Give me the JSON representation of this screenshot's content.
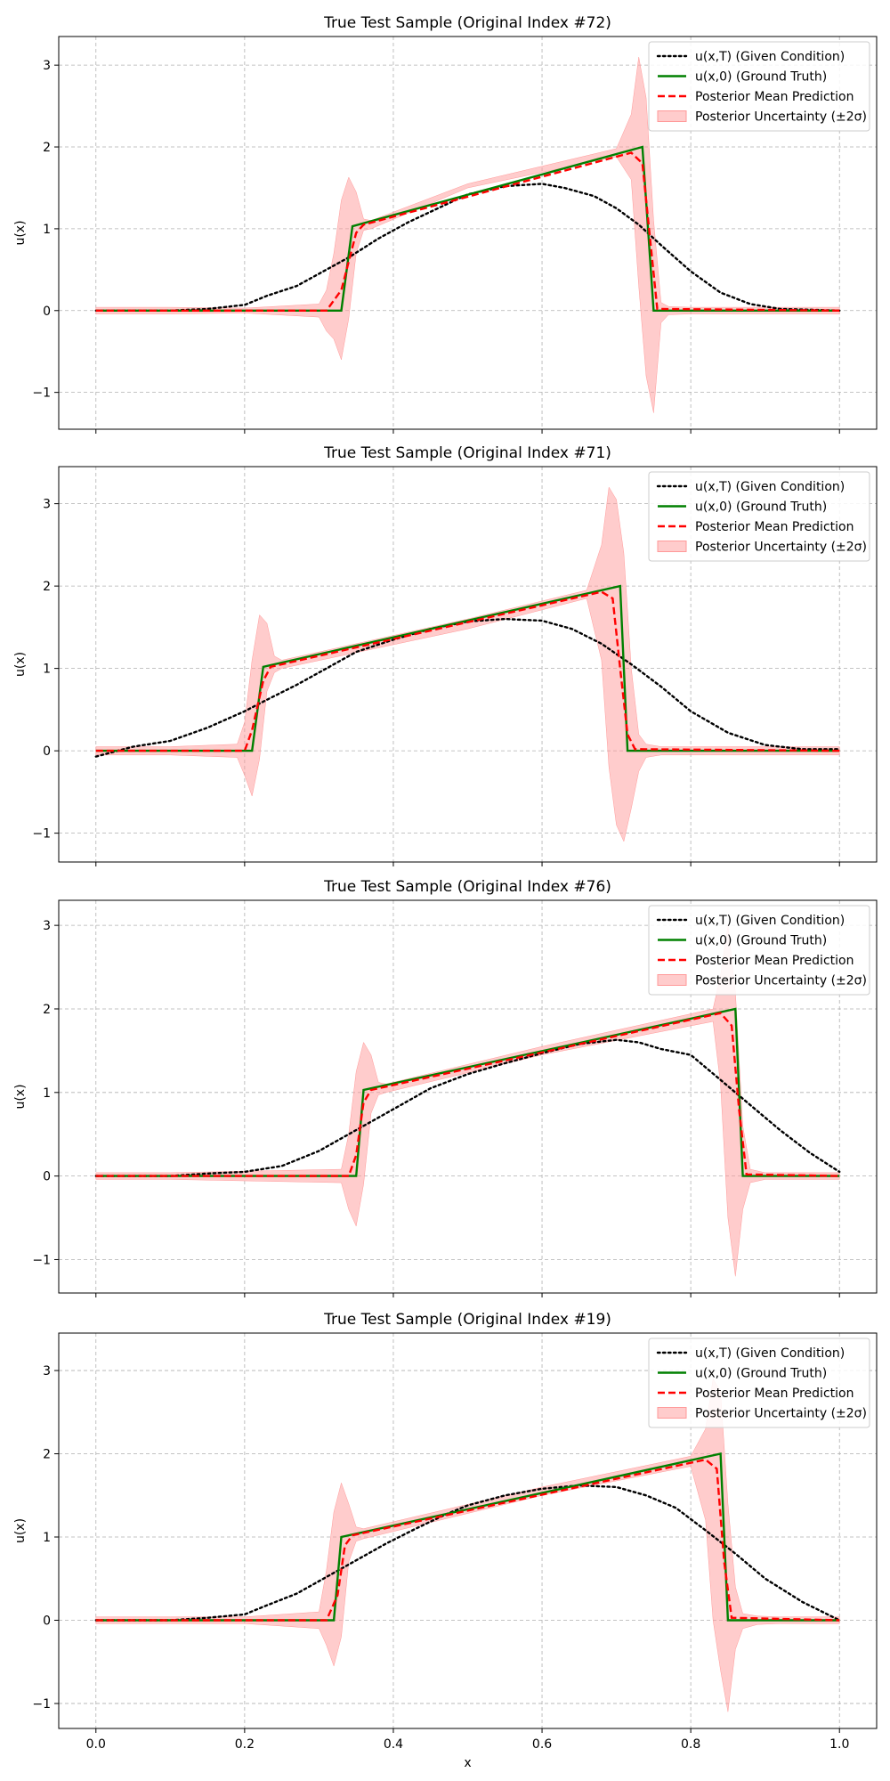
{
  "figure": {
    "xlabel": "x"
  },
  "colors": {
    "condition": "#000000",
    "ground_truth": "#008000",
    "mean": "#ff0000",
    "band": "#ff9999",
    "grid": "#b0b0b0"
  },
  "chart_data": [
    {
      "type": "line",
      "title": "True Test Sample (Original Index #72)",
      "xlabel": "",
      "ylabel": "u(x)",
      "xlim": [
        -0.05,
        1.05
      ],
      "ylim": [
        -1.45,
        3.35
      ],
      "xticks": [
        "0.0",
        "0.2",
        "0.4",
        "0.6",
        "0.8",
        "1.0"
      ],
      "yticks": [
        "−1",
        "0",
        "1",
        "2",
        "3"
      ],
      "grid": true,
      "legend": {
        "placement": "top-right",
        "entries": [
          "u(x,T) (Given Condition)",
          "u(x,0) (Ground Truth)",
          "Posterior Mean Prediction",
          "Posterior Uncertainty (±2σ)"
        ]
      },
      "series": [
        {
          "name": "u(x,T) (Given Condition)",
          "style": "dotted",
          "x": [
            0,
            0.1,
            0.15,
            0.2,
            0.23,
            0.27,
            0.3,
            0.34,
            0.38,
            0.42,
            0.46,
            0.5,
            0.55,
            0.6,
            0.63,
            0.67,
            0.7,
            0.73,
            0.76,
            0.8,
            0.84,
            0.88,
            0.92,
            1.0
          ],
          "y": [
            0,
            0,
            0.02,
            0.07,
            0.18,
            0.3,
            0.45,
            0.65,
            0.88,
            1.08,
            1.25,
            1.42,
            1.52,
            1.55,
            1.5,
            1.4,
            1.25,
            1.05,
            0.8,
            0.48,
            0.22,
            0.08,
            0.02,
            0
          ]
        },
        {
          "name": "u(x,0) (Ground Truth)",
          "style": "solid",
          "x": [
            0,
            0.33,
            0.345,
            0.735,
            0.75,
            1.0
          ],
          "y": [
            0,
            0,
            1.03,
            2.0,
            0,
            0
          ]
        },
        {
          "name": "Posterior Mean Prediction",
          "style": "dashed",
          "x": [
            0,
            0.31,
            0.33,
            0.35,
            0.36,
            0.72,
            0.735,
            0.745,
            0.755,
            1.0
          ],
          "y": [
            0,
            0,
            0.25,
            0.95,
            1.05,
            1.93,
            1.8,
            0.9,
            0.02,
            0
          ]
        },
        {
          "name": "Posterior Uncertainty (±2σ)",
          "style": "band",
          "x": [
            0,
            0.05,
            0.1,
            0.2,
            0.3,
            0.31,
            0.32,
            0.33,
            0.34,
            0.35,
            0.36,
            0.37,
            0.5,
            0.7,
            0.72,
            0.73,
            0.74,
            0.75,
            0.76,
            0.77,
            0.8,
            1.0
          ],
          "upper": [
            0.04,
            0.04,
            0.04,
            0.03,
            0.08,
            0.25,
            0.7,
            1.35,
            1.63,
            1.45,
            1.12,
            1.1,
            1.55,
            1.98,
            2.4,
            3.1,
            2.6,
            1.1,
            0.1,
            0.05,
            0.04,
            0.04
          ],
          "lower": [
            -0.04,
            -0.04,
            -0.04,
            -0.03,
            -0.08,
            -0.25,
            -0.35,
            -0.6,
            -0.1,
            0.7,
            0.98,
            1.0,
            1.5,
            1.88,
            1.6,
            0.3,
            -0.8,
            -1.25,
            -0.15,
            -0.05,
            -0.04,
            -0.04
          ]
        }
      ]
    },
    {
      "type": "line",
      "title": "True Test Sample (Original Index #71)",
      "xlabel": "",
      "ylabel": "u(x)",
      "xlim": [
        -0.05,
        1.05
      ],
      "ylim": [
        -1.35,
        3.45
      ],
      "xticks": [
        "0.0",
        "0.2",
        "0.4",
        "0.6",
        "0.8",
        "1.0"
      ],
      "yticks": [
        "−1",
        "0",
        "1",
        "2",
        "3"
      ],
      "grid": true,
      "legend": {
        "placement": "top-right",
        "entries": [
          "u(x,T) (Given Condition)",
          "u(x,0) (Ground Truth)",
          "Posterior Mean Prediction",
          "Posterior Uncertainty (±2σ)"
        ]
      },
      "series": [
        {
          "name": "u(x,T) (Given Condition)",
          "style": "dotted",
          "x": [
            0,
            0.05,
            0.1,
            0.15,
            0.2,
            0.23,
            0.27,
            0.31,
            0.35,
            0.4,
            0.45,
            0.5,
            0.55,
            0.6,
            0.64,
            0.68,
            0.72,
            0.76,
            0.8,
            0.85,
            0.9,
            0.95,
            1.0
          ],
          "y": [
            -0.07,
            0.05,
            0.12,
            0.28,
            0.48,
            0.62,
            0.8,
            1.0,
            1.2,
            1.35,
            1.48,
            1.57,
            1.6,
            1.58,
            1.48,
            1.3,
            1.05,
            0.78,
            0.48,
            0.22,
            0.07,
            0.02,
            0.02
          ]
        },
        {
          "name": "u(x,0) (Ground Truth)",
          "style": "solid",
          "x": [
            0,
            0.21,
            0.225,
            0.705,
            0.715,
            1.0
          ],
          "y": [
            0,
            0,
            1.02,
            2.0,
            0,
            0
          ]
        },
        {
          "name": "Posterior Mean Prediction",
          "style": "dashed",
          "x": [
            0,
            0.2,
            0.21,
            0.225,
            0.235,
            0.68,
            0.695,
            0.705,
            0.715,
            0.725,
            1.0
          ],
          "y": [
            0,
            0,
            0.25,
            0.85,
            1.02,
            1.93,
            1.85,
            1.0,
            0.2,
            0.02,
            0
          ]
        },
        {
          "name": "Posterior Uncertainty (±2σ)",
          "style": "band",
          "x": [
            0,
            0.05,
            0.1,
            0.19,
            0.2,
            0.21,
            0.22,
            0.23,
            0.24,
            0.25,
            0.5,
            0.66,
            0.68,
            0.69,
            0.7,
            0.71,
            0.72,
            0.73,
            0.74,
            0.76,
            1.0
          ],
          "upper": [
            0.05,
            0.05,
            0.05,
            0.08,
            0.35,
            1.1,
            1.65,
            1.55,
            1.15,
            1.1,
            1.6,
            1.95,
            2.5,
            3.2,
            3.05,
            2.4,
            1.0,
            0.2,
            0.08,
            0.05,
            0.05
          ],
          "lower": [
            -0.05,
            -0.05,
            -0.05,
            -0.08,
            -0.3,
            -0.55,
            -0.1,
            0.72,
            0.95,
            1.0,
            1.48,
            1.85,
            1.1,
            -0.2,
            -0.9,
            -1.1,
            -0.7,
            -0.25,
            -0.08,
            -0.05,
            -0.05
          ]
        }
      ]
    },
    {
      "type": "line",
      "title": "True Test Sample (Original Index #76)",
      "xlabel": "",
      "ylabel": "u(x)",
      "xlim": [
        -0.05,
        1.05
      ],
      "ylim": [
        -1.4,
        3.3
      ],
      "xticks": [
        "0.0",
        "0.2",
        "0.4",
        "0.6",
        "0.8",
        "1.0"
      ],
      "yticks": [
        "−1",
        "0",
        "1",
        "2",
        "3"
      ],
      "grid": true,
      "legend": {
        "placement": "top-right",
        "entries": [
          "u(x,T) (Given Condition)",
          "u(x,0) (Ground Truth)",
          "Posterior Mean Prediction",
          "Posterior Uncertainty (±2σ)"
        ]
      },
      "series": [
        {
          "name": "u(x,T) (Given Condition)",
          "style": "dotted",
          "x": [
            0,
            0.1,
            0.15,
            0.2,
            0.25,
            0.3,
            0.35,
            0.4,
            0.45,
            0.5,
            0.55,
            0.6,
            0.65,
            0.7,
            0.73,
            0.76,
            0.8,
            0.84,
            0.88,
            0.92,
            0.96,
            1.0
          ],
          "y": [
            0,
            0,
            0.03,
            0.05,
            0.12,
            0.3,
            0.55,
            0.8,
            1.05,
            1.22,
            1.35,
            1.47,
            1.58,
            1.63,
            1.6,
            1.52,
            1.45,
            1.15,
            0.85,
            0.55,
            0.28,
            0.05
          ]
        },
        {
          "name": "u(x,0) (Ground Truth)",
          "style": "solid",
          "x": [
            0,
            0.35,
            0.36,
            0.86,
            0.87,
            1.0
          ],
          "y": [
            0,
            0,
            1.03,
            2.0,
            0,
            0
          ]
        },
        {
          "name": "Posterior Mean Prediction",
          "style": "dashed",
          "x": [
            0,
            0.34,
            0.35,
            0.36,
            0.37,
            0.84,
            0.855,
            0.865,
            0.875,
            1.0
          ],
          "y": [
            0,
            0,
            0.25,
            0.88,
            1.03,
            1.95,
            1.8,
            0.8,
            0.02,
            0
          ]
        },
        {
          "name": "Posterior Uncertainty (±2σ)",
          "style": "band",
          "x": [
            0,
            0.05,
            0.1,
            0.33,
            0.34,
            0.35,
            0.36,
            0.37,
            0.38,
            0.39,
            0.6,
            0.83,
            0.84,
            0.85,
            0.86,
            0.87,
            0.88,
            0.9,
            1.0
          ],
          "upper": [
            0.04,
            0.04,
            0.04,
            0.08,
            0.5,
            1.25,
            1.6,
            1.45,
            1.12,
            1.1,
            1.55,
            2.0,
            2.4,
            3.0,
            2.2,
            0.6,
            0.08,
            0.04,
            0.04
          ],
          "lower": [
            -0.04,
            -0.04,
            -0.04,
            -0.08,
            -0.4,
            -0.6,
            -0.1,
            0.75,
            0.97,
            1.0,
            1.45,
            1.85,
            1.1,
            -0.5,
            -1.2,
            -0.4,
            -0.08,
            -0.04,
            -0.04
          ]
        }
      ]
    },
    {
      "type": "line",
      "title": "True Test Sample (Original Index #19)",
      "xlabel": "x",
      "ylabel": "u(x)",
      "xlim": [
        -0.05,
        1.05
      ],
      "ylim": [
        -1.3,
        3.45
      ],
      "xticks": [
        "0.0",
        "0.2",
        "0.4",
        "0.6",
        "0.8",
        "1.0"
      ],
      "yticks": [
        "−1",
        "0",
        "1",
        "2",
        "3"
      ],
      "grid": true,
      "legend": {
        "placement": "top-right",
        "entries": [
          "u(x,T) (Given Condition)",
          "u(x,0) (Ground Truth)",
          "Posterior Mean Prediction",
          "Posterior Uncertainty (±2σ)"
        ]
      },
      "series": [
        {
          "name": "u(x,T) (Given Condition)",
          "style": "dotted",
          "x": [
            0,
            0.1,
            0.15,
            0.2,
            0.23,
            0.27,
            0.31,
            0.35,
            0.39,
            0.43,
            0.47,
            0.5,
            0.55,
            0.6,
            0.65,
            0.7,
            0.74,
            0.78,
            0.82,
            0.86,
            0.9,
            0.95,
            1.0
          ],
          "y": [
            0,
            0,
            0.03,
            0.07,
            0.18,
            0.32,
            0.52,
            0.72,
            0.92,
            1.1,
            1.27,
            1.38,
            1.5,
            1.58,
            1.62,
            1.6,
            1.5,
            1.35,
            1.08,
            0.8,
            0.5,
            0.22,
            0
          ]
        },
        {
          "name": "u(x,0) (Ground Truth)",
          "style": "solid",
          "x": [
            0,
            0.32,
            0.33,
            0.84,
            0.85,
            1.0
          ],
          "y": [
            0,
            0,
            1.0,
            2.0,
            0,
            0
          ]
        },
        {
          "name": "Posterior Mean Prediction",
          "style": "dashed",
          "x": [
            0,
            0.31,
            0.325,
            0.335,
            0.345,
            0.82,
            0.835,
            0.845,
            0.855,
            1.0
          ],
          "y": [
            0,
            0,
            0.3,
            0.9,
            1.02,
            1.93,
            1.82,
            0.7,
            0.03,
            0
          ]
        },
        {
          "name": "Posterior Uncertainty (±2σ)",
          "style": "band",
          "x": [
            0,
            0.05,
            0.1,
            0.2,
            0.3,
            0.31,
            0.32,
            0.33,
            0.34,
            0.35,
            0.36,
            0.6,
            0.8,
            0.82,
            0.83,
            0.84,
            0.85,
            0.86,
            0.87,
            0.89,
            0.92,
            1.0
          ],
          "upper": [
            0.04,
            0.04,
            0.04,
            0.04,
            0.1,
            0.6,
            1.3,
            1.65,
            1.4,
            1.12,
            1.1,
            1.6,
            1.97,
            2.3,
            2.9,
            2.75,
            1.4,
            0.4,
            0.08,
            0.05,
            0.04,
            0.04
          ],
          "lower": [
            -0.04,
            -0.04,
            -0.04,
            -0.04,
            -0.1,
            -0.3,
            -0.55,
            -0.2,
            0.7,
            0.95,
            0.98,
            1.5,
            1.85,
            1.2,
            0.0,
            -0.6,
            -1.1,
            -0.35,
            -0.1,
            -0.05,
            -0.04,
            -0.04
          ]
        }
      ]
    }
  ]
}
